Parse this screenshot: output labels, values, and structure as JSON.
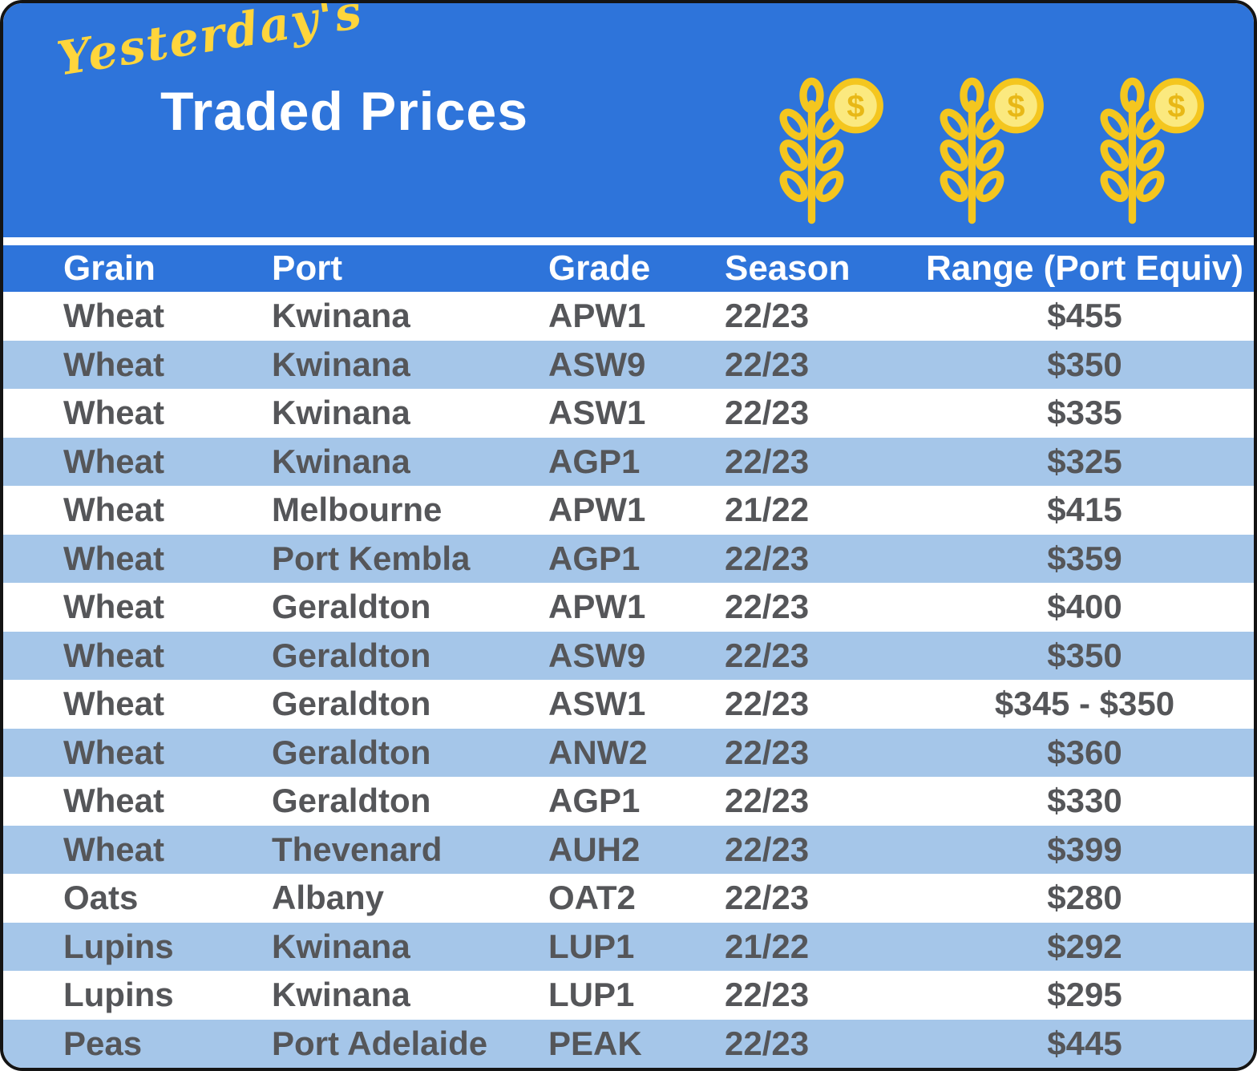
{
  "page": {
    "title_script": "Yesterday's",
    "title_main": "Traded Prices"
  },
  "icons": {
    "decoration": [
      "wheat-coin-icon",
      "wheat-coin-icon",
      "wheat-coin-icon"
    ],
    "coin_symbol": "$"
  },
  "colors": {
    "banner_blue": "#2e74da",
    "row_alt_blue": "#a5c6e9",
    "header_text": "#ffffff",
    "body_text": "#555659",
    "accent_yellow": "#ffd53c",
    "wheat_gold": "#f4c61f"
  },
  "chart_data": {
    "type": "table",
    "title": "Yesterday's Traded Prices",
    "columns": [
      "Grain",
      "Port",
      "Grade",
      "Season",
      "Range (Port Equiv)"
    ],
    "rows": [
      [
        "Wheat",
        "Kwinana",
        "APW1",
        "22/23",
        "$455"
      ],
      [
        "Wheat",
        "Kwinana",
        "ASW9",
        "22/23",
        "$350"
      ],
      [
        "Wheat",
        "Kwinana",
        "ASW1",
        "22/23",
        "$335"
      ],
      [
        "Wheat",
        "Kwinana",
        "AGP1",
        "22/23",
        "$325"
      ],
      [
        "Wheat",
        "Melbourne",
        "APW1",
        "21/22",
        "$415"
      ],
      [
        "Wheat",
        "Port Kembla",
        "AGP1",
        "22/23",
        "$359"
      ],
      [
        "Wheat",
        "Geraldton",
        "APW1",
        "22/23",
        "$400"
      ],
      [
        "Wheat",
        "Geraldton",
        "ASW9",
        "22/23",
        "$350"
      ],
      [
        "Wheat",
        "Geraldton",
        "ASW1",
        "22/23",
        "$345 - $350"
      ],
      [
        "Wheat",
        "Geraldton",
        "ANW2",
        "22/23",
        "$360"
      ],
      [
        "Wheat",
        "Geraldton",
        "AGP1",
        "22/23",
        "$330"
      ],
      [
        "Wheat",
        "Thevenard",
        "AUH2",
        "22/23",
        "$399"
      ],
      [
        "Oats",
        "Albany",
        "OAT2",
        "22/23",
        "$280"
      ],
      [
        "Lupins",
        "Kwinana",
        "LUP1",
        "21/22",
        "$292"
      ],
      [
        "Lupins",
        "Kwinana",
        "LUP1",
        "22/23",
        "$295"
      ],
      [
        "Peas",
        "Port Adelaide",
        "PEAK",
        "22/23",
        "$445"
      ]
    ]
  }
}
